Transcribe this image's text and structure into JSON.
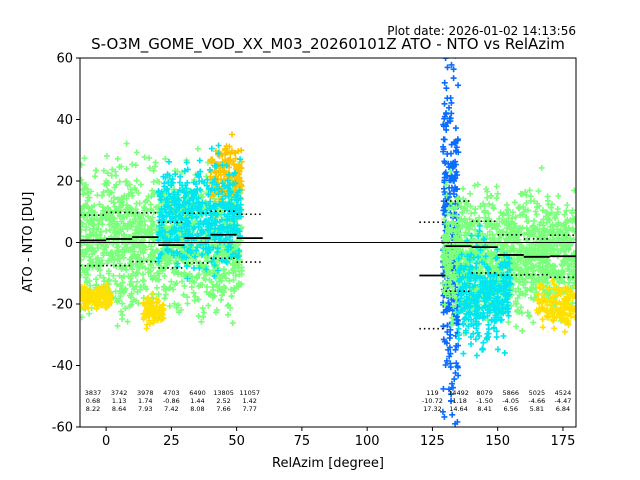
{
  "plot_date": "Plot date: 2026-01-02 14:13:56",
  "chart_data": {
    "type": "scatter",
    "title": "S-O3M_GOME_VOD_XX_M03_20260101Z ATO - NTO vs RelAzim",
    "xlabel": "RelAzim [degree]",
    "ylabel": "ATO - NTO [DU]",
    "xlim": [
      -10,
      180
    ],
    "ylim": [
      -60,
      60
    ],
    "xticks": [
      0,
      25,
      50,
      75,
      100,
      125,
      150,
      175
    ],
    "yticks": [
      -60,
      -40,
      -20,
      0,
      20,
      40,
      60
    ],
    "zero_line": 0,
    "marker": "+",
    "colors": {
      "dark_blue": "#0000cc",
      "blue": "#0a6cff",
      "cyan": "#00e5ee",
      "aqua_green": "#33ffbb",
      "light_green": "#7cff7c",
      "yellow_green": "#d4ff33",
      "yellow": "#ffe000",
      "orange": "#ffc400"
    },
    "bins": [
      {
        "x_start": -10,
        "x_end": 0,
        "mean": 0.68,
        "stddev": 8.22,
        "count": 3837,
        "mean_label": "0.68",
        "std_label": "8.22",
        "count_label": "3837"
      },
      {
        "x_start": 0,
        "x_end": 10,
        "mean": 1.13,
        "stddev": 8.64,
        "count": 3742,
        "mean_label": "1.13",
        "std_label": "8.64",
        "count_label": "3742"
      },
      {
        "x_start": 10,
        "x_end": 20,
        "mean": 1.74,
        "stddev": 7.93,
        "count": 3978,
        "mean_label": "1.74",
        "std_label": "7.93",
        "count_label": "3978"
      },
      {
        "x_start": 20,
        "x_end": 30,
        "mean": -0.86,
        "stddev": 7.42,
        "count": 4703,
        "mean_label": "-0.86",
        "std_label": "7.42",
        "count_label": "4703"
      },
      {
        "x_start": 30,
        "x_end": 40,
        "mean": 1.44,
        "stddev": 8.08,
        "count": 6490,
        "mean_label": "1.44",
        "std_label": "8.08",
        "count_label": "6490"
      },
      {
        "x_start": 40,
        "x_end": 50,
        "mean": 2.52,
        "stddev": 7.66,
        "count": 13805,
        "mean_label": "2.52",
        "std_label": "7.66",
        "count_label": "13805"
      },
      {
        "x_start": 50,
        "x_end": 60,
        "mean": 1.42,
        "stddev": 7.77,
        "count": 11057,
        "mean_label": "1.42",
        "std_label": "7.77",
        "count_label": "11057"
      },
      {
        "x_start": 120,
        "x_end": 130,
        "mean": -10.72,
        "stddev": 17.32,
        "count": 119,
        "mean_label": "-10.72",
        "std_label": "17.32",
        "count_label": "119"
      },
      {
        "x_start": 130,
        "x_end": 140,
        "mean": -1.18,
        "stddev": 14.64,
        "count": 14492,
        "mean_label": "-1.18",
        "std_label": "14.64",
        "count_label": "14492"
      },
      {
        "x_start": 140,
        "x_end": 150,
        "mean": -1.5,
        "stddev": 8.41,
        "count": 8079,
        "mean_label": "-1.50",
        "std_label": "8.41",
        "count_label": "8079"
      },
      {
        "x_start": 150,
        "x_end": 160,
        "mean": -4.05,
        "stddev": 6.56,
        "count": 5866,
        "mean_label": "-4.05",
        "std_label": "6.56",
        "count_label": "5866"
      },
      {
        "x_start": 160,
        "x_end": 170,
        "mean": -4.66,
        "stddev": 5.81,
        "count": 5025,
        "mean_label": "-4.66",
        "std_label": "5.81",
        "count_label": "5025"
      },
      {
        "x_start": 170,
        "x_end": 180,
        "mean": -4.47,
        "stddev": 6.84,
        "count": 4524,
        "mean_label": "-4.47",
        "std_label": "6.84",
        "count_label": "4524"
      }
    ],
    "point_clusters": [
      {
        "x_range": [
          -10,
          52
        ],
        "core_range": [
          -22,
          24
        ],
        "outer_range": [
          -28,
          30
        ],
        "color_key": "light_green"
      },
      {
        "x_range": [
          -10,
          2
        ],
        "core_range": [
          -22,
          -14
        ],
        "color_key": "yellow"
      },
      {
        "x_range": [
          14,
          22
        ],
        "core_range": [
          -27,
          -18
        ],
        "color_key": "yellow"
      },
      {
        "x_range": [
          40,
          52
        ],
        "core_range": [
          12,
          32
        ],
        "color_key": "orange"
      },
      {
        "x_range": [
          20,
          52
        ],
        "core_range": [
          -8,
          26
        ],
        "color_key": "cyan"
      },
      {
        "x_range": [
          129,
          135
        ],
        "core_range": [
          -58,
          58
        ],
        "color_key": "blue"
      },
      {
        "x_range": [
          129,
          180
        ],
        "core_range": [
          -24,
          16
        ],
        "color_key": "light_green"
      },
      {
        "x_range": [
          135,
          155
        ],
        "core_range": [
          -34,
          0
        ],
        "color_key": "cyan"
      },
      {
        "x_range": [
          165,
          180
        ],
        "core_range": [
          -28,
          -12
        ],
        "color_key": "yellow"
      }
    ]
  }
}
